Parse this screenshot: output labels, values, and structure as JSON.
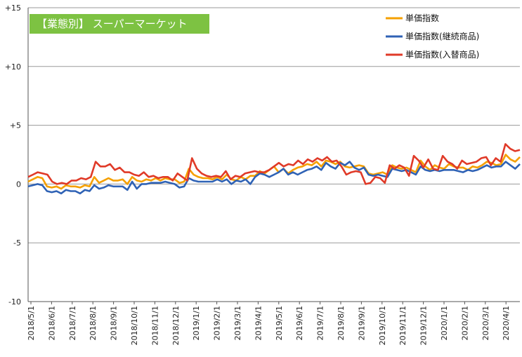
{
  "chart_data": {
    "type": "line",
    "title": "【業態別】 スーパーマーケット",
    "title_bg": "#7dc242",
    "xlabel": "",
    "ylabel": "",
    "ylim": [
      -10,
      15
    ],
    "yticks": [
      15,
      10,
      5,
      0,
      -5,
      -10
    ],
    "ytick_labels": [
      "+15",
      "+10",
      "+5",
      "0",
      "-5",
      "-10"
    ],
    "grid": "horizontal",
    "legend_position": "top-right",
    "x_ticks": [
      "2018/5/1",
      "2018/6/1",
      "2018/7/1",
      "2018/8/1",
      "2018/9/1",
      "2018/10/1",
      "2018/11/1",
      "2018/12/1",
      "2019/1/1",
      "2019/2/1",
      "2019/3/1",
      "2019/4/1",
      "2019/5/1",
      "2019/6/1",
      "2019/7/1",
      "2019/8/1",
      "2019/9/1",
      "2019/10/1",
      "2019/11/1",
      "2019/12/1",
      "2020/1/1",
      "2020/2/1",
      "2020/3/1",
      "2020/4/1"
    ],
    "series": [
      {
        "name": "単価指数",
        "color": "#f5a000",
        "values": [
          0.2,
          0.4,
          0.6,
          0.5,
          -0.2,
          -0.3,
          -0.2,
          -0.4,
          -0.1,
          -0.2,
          -0.2,
          -0.3,
          -0.1,
          -0.2,
          0.6,
          0.1,
          0.3,
          0.5,
          0.3,
          0.3,
          0.4,
          0.0,
          0.6,
          0.3,
          0.2,
          0.4,
          0.3,
          0.5,
          0.3,
          0.5,
          0.4,
          0.4,
          0.1,
          0.2,
          1.3,
          0.8,
          0.6,
          0.5,
          0.5,
          0.4,
          0.6,
          0.4,
          0.8,
          0.4,
          0.3,
          0.6,
          0.4,
          0.7,
          0.7,
          1.1,
          0.9,
          1.2,
          1.5,
          1.0,
          1.3,
          0.9,
          1.2,
          1.4,
          1.5,
          1.7,
          1.6,
          1.9,
          1.5,
          2.0,
          1.9,
          1.7,
          1.9,
          1.5,
          1.4,
          1.5,
          1.6,
          1.5,
          0.9,
          0.8,
          0.9,
          1.0,
          0.8,
          1.6,
          1.4,
          1.3,
          1.4,
          1.2,
          1.0,
          2.0,
          1.5,
          1.2,
          1.6,
          1.4,
          1.3,
          1.7,
          1.5,
          1.4,
          1.4,
          1.2,
          1.5,
          1.4,
          1.6,
          1.9,
          1.8,
          1.6,
          1.7,
          2.5,
          2.1,
          1.9,
          2.3
        ]
      },
      {
        "name": "単価指数(継続商品)",
        "color": "#2f62b5",
        "values": [
          -0.2,
          -0.1,
          0.0,
          -0.1,
          -0.6,
          -0.7,
          -0.6,
          -0.8,
          -0.5,
          -0.6,
          -0.6,
          -0.8,
          -0.5,
          -0.6,
          -0.1,
          -0.4,
          -0.3,
          -0.1,
          -0.2,
          -0.2,
          -0.2,
          -0.5,
          0.2,
          -0.4,
          0.0,
          0.0,
          0.1,
          0.1,
          0.1,
          0.2,
          0.1,
          0.0,
          -0.3,
          -0.2,
          0.5,
          0.3,
          0.2,
          0.2,
          0.2,
          0.2,
          0.4,
          0.2,
          0.4,
          0.0,
          0.3,
          0.2,
          0.4,
          0.0,
          0.6,
          0.9,
          0.8,
          0.6,
          0.8,
          1.0,
          1.3,
          0.8,
          1.0,
          0.8,
          1.0,
          1.2,
          1.3,
          1.5,
          1.2,
          1.8,
          1.5,
          1.3,
          1.8,
          1.6,
          1.9,
          1.4,
          1.2,
          1.4,
          0.8,
          0.7,
          0.8,
          0.7,
          0.6,
          1.3,
          1.2,
          1.1,
          1.2,
          1.0,
          0.8,
          1.5,
          1.2,
          1.1,
          1.2,
          1.1,
          1.2,
          1.2,
          1.2,
          1.1,
          1.0,
          1.2,
          1.1,
          1.2,
          1.4,
          1.6,
          1.4,
          1.5,
          1.5,
          1.9,
          1.6,
          1.3,
          1.7
        ]
      },
      {
        "name": "単価指数(入替商品)",
        "color": "#e03a28",
        "values": [
          0.6,
          0.8,
          1.0,
          0.9,
          0.8,
          0.2,
          0.0,
          0.1,
          0.0,
          0.3,
          0.3,
          0.5,
          0.4,
          0.6,
          1.9,
          1.5,
          1.5,
          1.7,
          1.2,
          1.4,
          1.0,
          1.0,
          0.8,
          0.7,
          1.0,
          0.6,
          0.7,
          0.5,
          0.6,
          0.6,
          0.3,
          0.9,
          0.6,
          0.3,
          2.2,
          1.3,
          0.9,
          0.7,
          0.6,
          0.7,
          0.6,
          1.1,
          0.4,
          0.7,
          0.6,
          0.9,
          1.0,
          1.1,
          1.0,
          1.0,
          1.2,
          1.5,
          1.8,
          1.5,
          1.7,
          1.6,
          2.0,
          1.7,
          2.1,
          1.9,
          2.2,
          2.0,
          2.3,
          1.9,
          2.0,
          1.5,
          0.8,
          1.0,
          1.1,
          1.0,
          0.0,
          0.1,
          0.6,
          0.5,
          0.1,
          1.6,
          1.3,
          1.6,
          1.4,
          0.7,
          2.4,
          2.0,
          1.4,
          2.1,
          1.3,
          1.2,
          2.4,
          1.9,
          1.7,
          1.3,
          2.0,
          1.7,
          1.8,
          1.9,
          2.2,
          2.3,
          1.6,
          2.2,
          1.9,
          3.4,
          3.0,
          2.8,
          2.9
        ]
      }
    ]
  }
}
